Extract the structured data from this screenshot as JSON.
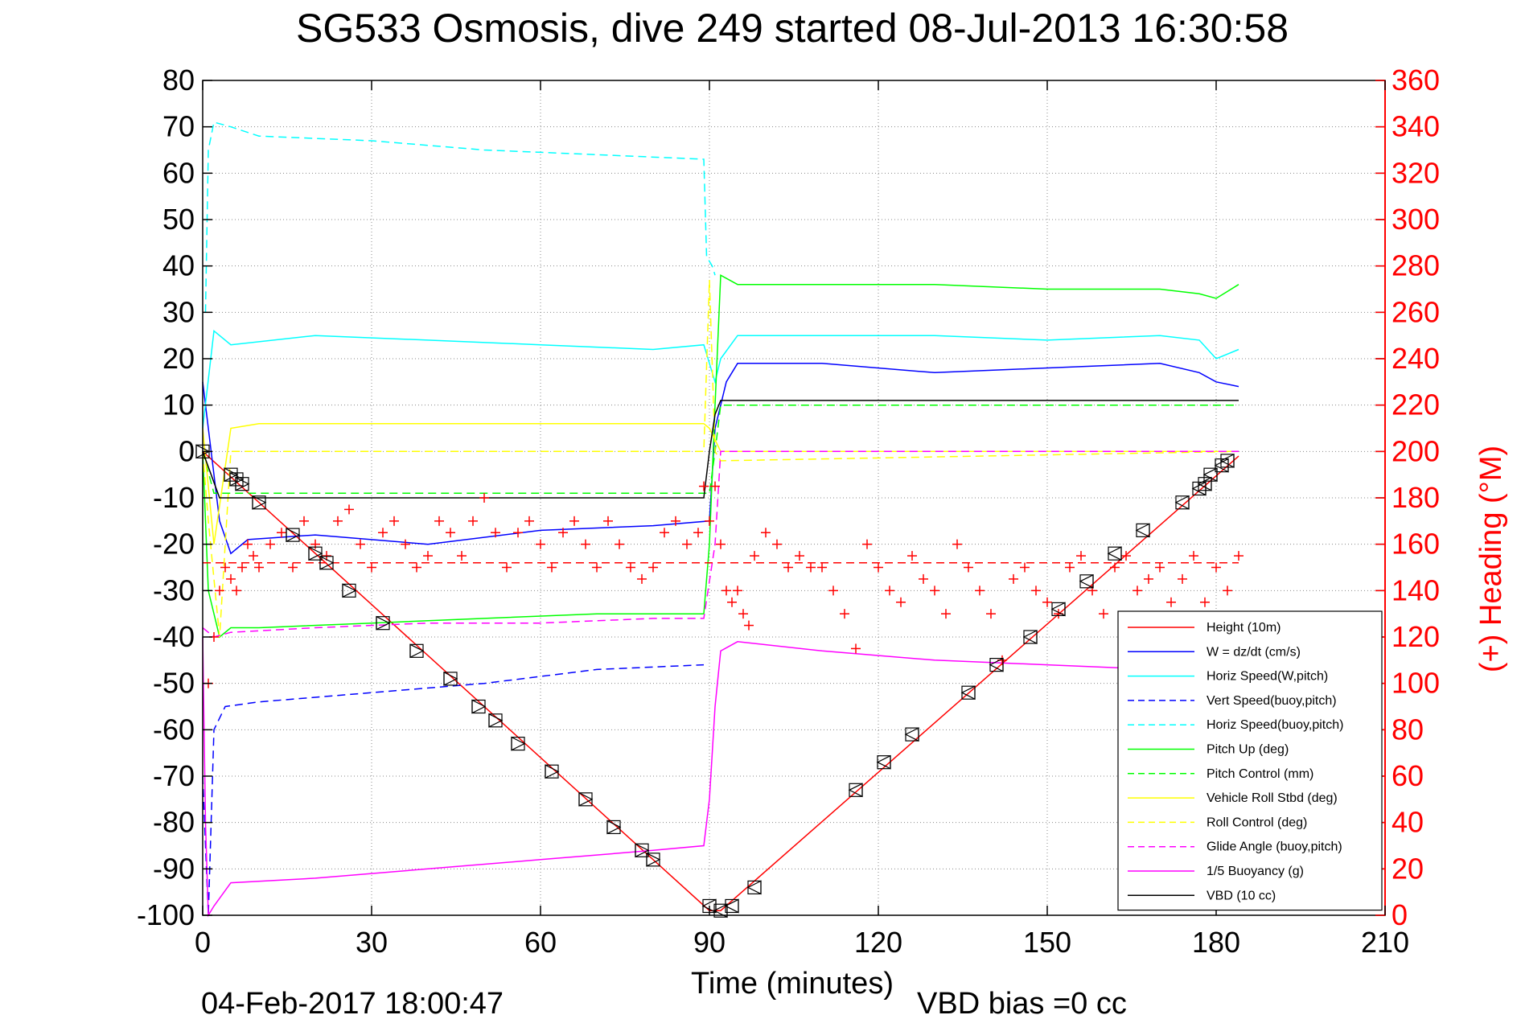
{
  "chart_data": {
    "type": "line",
    "title": "SG533 Osmosis, dive 249 started 08-Jul-2013 16:30:58",
    "xlabel": "Time (minutes)",
    "ylabel": "",
    "y2label": "(+) Heading (°M)",
    "xlim": [
      0,
      210
    ],
    "ylim": [
      -100,
      80
    ],
    "y2lim": [
      0,
      360
    ],
    "xticks": [
      0,
      30,
      60,
      90,
      120,
      150,
      180,
      210
    ],
    "xtick_labels": [
      "0",
      "30",
      "60",
      "90",
      "120",
      "150",
      "180",
      "210"
    ],
    "yticks": [
      -100,
      -90,
      -80,
      -70,
      -60,
      -50,
      -40,
      -30,
      -20,
      -10,
      0,
      10,
      20,
      30,
      40,
      50,
      60,
      70,
      80
    ],
    "ytick_labels": [
      "-100",
      "-90",
      "-80",
      "-70",
      "-60",
      "-50",
      "-40",
      "-30",
      "-20",
      "-10",
      "0",
      "10",
      "20",
      "30",
      "40",
      "50",
      "60",
      "70",
      "80"
    ],
    "y2ticks": [
      0,
      20,
      40,
      60,
      80,
      100,
      120,
      140,
      160,
      180,
      200,
      220,
      240,
      260,
      280,
      300,
      320,
      340,
      360
    ],
    "y2tick_labels": [
      "0",
      "20",
      "40",
      "60",
      "80",
      "100",
      "120",
      "140",
      "160",
      "180",
      "200",
      "220",
      "240",
      "260",
      "280",
      "300",
      "320",
      "340",
      "360"
    ],
    "grid": true,
    "legend_position": "bottom-right",
    "footer_left": "04-Feb-2017 18:00:47",
    "footer_right": "VBD bias =0 cc",
    "series": [
      {
        "name": "Height (10m)",
        "color": "#ff0000",
        "dash": "solid",
        "x": [
          0,
          90,
          92,
          184
        ],
        "y": [
          0,
          -99,
          -99,
          -1
        ]
      },
      {
        "name": "W = dz/dt (cm/s)",
        "color": "#0000ff",
        "dash": "solid",
        "x": [
          0,
          3,
          5,
          8,
          20,
          40,
          60,
          80,
          90,
          91,
          93,
          95,
          110,
          130,
          150,
          170,
          177,
          180,
          184
        ],
        "y": [
          15,
          -15,
          -22,
          -19,
          -18,
          -20,
          -17,
          -16,
          -15,
          5,
          15,
          19,
          19,
          17,
          18,
          19,
          17,
          15,
          14
        ]
      },
      {
        "name": "Horiz Speed(W,pitch)",
        "color": "#00ffff",
        "dash": "solid",
        "x": [
          0,
          2,
          5,
          20,
          40,
          60,
          80,
          89,
          91,
          92,
          95,
          110,
          130,
          150,
          170,
          177,
          180,
          184
        ],
        "y": [
          5,
          26,
          23,
          25,
          24,
          23,
          22,
          23,
          15,
          20,
          25,
          25,
          25,
          24,
          25,
          24,
          20,
          22
        ]
      },
      {
        "name": "Vert Speed(buoy,pitch)",
        "color": "#0000ff",
        "dash": "dashed",
        "x": [
          0,
          1,
          2,
          4,
          10,
          30,
          50,
          70,
          89
        ],
        "y": [
          -70,
          -100,
          -60,
          -55,
          -54,
          -52,
          -50,
          -47,
          -46
        ]
      },
      {
        "name": "Horiz Speed(buoy,pitch)",
        "color": "#00ffff",
        "dash": "dashed",
        "x": [
          0.5,
          1,
          2,
          5,
          10,
          30,
          50,
          70,
          89,
          89.5,
          90.5,
          91
        ],
        "y": [
          30,
          65,
          71,
          70,
          68,
          67,
          65,
          64,
          63,
          42,
          40,
          38
        ]
      },
      {
        "name": "Pitch Up (deg)",
        "color": "#00ff00",
        "dash": "solid",
        "x": [
          0,
          1,
          3,
          5,
          10,
          30,
          50,
          70,
          89,
          90,
          91,
          92,
          95,
          110,
          130,
          150,
          170,
          177,
          180,
          184
        ],
        "y": [
          0,
          -30,
          -40,
          -38,
          -38,
          -37,
          -36,
          -35,
          -35,
          -20,
          10,
          38,
          36,
          36,
          36,
          35,
          35,
          34,
          33,
          36
        ]
      },
      {
        "name": "Pitch Control (mm)",
        "color": "#00ff00",
        "dash": "dashed",
        "x": [
          0,
          2,
          4,
          89,
          90,
          91,
          92,
          93,
          184
        ],
        "y": [
          0,
          -9,
          -9,
          -9,
          -9,
          0,
          10,
          10,
          10
        ]
      },
      {
        "name": "Vehicle Roll Stbd (deg)",
        "color": "#ffff00",
        "dash": "solid",
        "x": [
          0,
          2,
          5,
          10,
          30,
          50,
          70,
          89,
          90,
          92,
          95,
          110,
          130,
          150,
          170,
          180,
          184
        ],
        "y": [
          5,
          -20,
          5,
          6,
          6,
          6,
          6,
          6,
          5,
          0,
          0,
          0,
          0,
          0,
          0,
          0,
          0
        ]
      },
      {
        "name": "Roll Control (deg)",
        "color": "#ffff00",
        "dash": "dashed",
        "x": [
          0,
          1,
          3,
          5,
          89,
          90,
          91,
          92,
          184
        ],
        "y": [
          0,
          -15,
          -40,
          0,
          0,
          37,
          0,
          -2,
          0
        ]
      },
      {
        "name": "Glide Angle (buoy,pitch)",
        "color": "#ff00ff",
        "dash": "dashed",
        "x": [
          0,
          2,
          5,
          20,
          40,
          60,
          80,
          89,
          91,
          92,
          184
        ],
        "y": [
          -38,
          -40,
          -39,
          -38,
          -37,
          -37,
          -36,
          -36,
          -20,
          0,
          0
        ]
      },
      {
        "name": "1/5 Buoyancy (g)",
        "color": "#ff00ff",
        "dash": "solid",
        "x": [
          0,
          0.5,
          1,
          2,
          5,
          20,
          40,
          60,
          80,
          89,
          90,
          91,
          92,
          95,
          110,
          130,
          150,
          170,
          184
        ],
        "y": [
          -40,
          -80,
          -100,
          -98,
          -93,
          -92,
          -90,
          -88,
          -86,
          -85,
          -75,
          -55,
          -43,
          -41,
          -43,
          -45,
          -46,
          -47,
          -47
        ]
      },
      {
        "name": "VBD (10 cc)",
        "color": "#000000",
        "dash": "solid",
        "x": [
          0,
          3,
          89,
          90,
          91,
          92,
          93,
          184
        ],
        "y": [
          0,
          -10,
          -10,
          0,
          8,
          11,
          11,
          11
        ]
      }
    ],
    "heading_series": {
      "name": "(+) Heading",
      "color": "#ff0000",
      "axis": "right",
      "marker": "+",
      "x": [
        1,
        2,
        3,
        4,
        5,
        6,
        7,
        8,
        9,
        10,
        12,
        14,
        16,
        18,
        20,
        22,
        24,
        26,
        28,
        30,
        32,
        34,
        36,
        38,
        40,
        42,
        44,
        46,
        48,
        50,
        52,
        54,
        56,
        58,
        60,
        62,
        64,
        66,
        68,
        70,
        72,
        74,
        76,
        78,
        80,
        82,
        84,
        86,
        88,
        89,
        90,
        91,
        92,
        93,
        94,
        95,
        96,
        97,
        98,
        100,
        102,
        104,
        106,
        108,
        110,
        112,
        114,
        116,
        118,
        120,
        122,
        124,
        126,
        128,
        130,
        132,
        134,
        136,
        138,
        140,
        142,
        144,
        146,
        148,
        150,
        152,
        154,
        156,
        158,
        160,
        162,
        164,
        166,
        168,
        170,
        172,
        174,
        176,
        178,
        180,
        182,
        184
      ],
      "y": [
        100,
        120,
        140,
        150,
        145,
        140,
        150,
        160,
        155,
        150,
        160,
        165,
        150,
        170,
        160,
        155,
        170,
        175,
        160,
        150,
        165,
        170,
        160,
        150,
        155,
        170,
        165,
        155,
        170,
        180,
        165,
        150,
        165,
        170,
        160,
        150,
        165,
        170,
        160,
        150,
        170,
        160,
        150,
        145,
        150,
        165,
        170,
        160,
        165,
        185,
        170,
        185,
        160,
        140,
        135,
        140,
        130,
        125,
        155,
        165,
        160,
        150,
        155,
        150,
        150,
        140,
        130,
        115,
        160,
        150,
        140,
        135,
        155,
        145,
        140,
        130,
        160,
        150,
        140,
        130,
        110,
        145,
        150,
        140,
        135,
        130,
        150,
        155,
        140,
        130,
        150,
        155,
        140,
        145,
        150,
        135,
        145,
        155,
        135,
        150,
        140,
        155
      ]
    },
    "heading_mean": {
      "color": "#ff0000",
      "dash": "dashed",
      "axis": "right",
      "x": [
        0,
        184
      ],
      "y": [
        152,
        152
      ]
    },
    "height_markers": {
      "color": "#000000",
      "marker": "triangle-box",
      "x": [
        0,
        5,
        6,
        7,
        10,
        16,
        20,
        22,
        26,
        32,
        38,
        44,
        49,
        52,
        56,
        62,
        68,
        73,
        78,
        80,
        90,
        92,
        94,
        98,
        116,
        121,
        126,
        136,
        141,
        147,
        152,
        157,
        162,
        167,
        174,
        177,
        178,
        179,
        181,
        182
      ],
      "y": [
        0,
        -5,
        -6,
        -7,
        -11,
        -18,
        -22,
        -24,
        -30,
        -37,
        -43,
        -49,
        -55,
        -58,
        -63,
        -69,
        -75,
        -81,
        -86,
        -88,
        -98,
        -99,
        -98,
        -94,
        -73,
        -67,
        -61,
        -52,
        -46,
        -40,
        -34,
        -28,
        -22,
        -17,
        -11,
        -8,
        -7,
        -5,
        -3,
        -2
      ]
    }
  }
}
